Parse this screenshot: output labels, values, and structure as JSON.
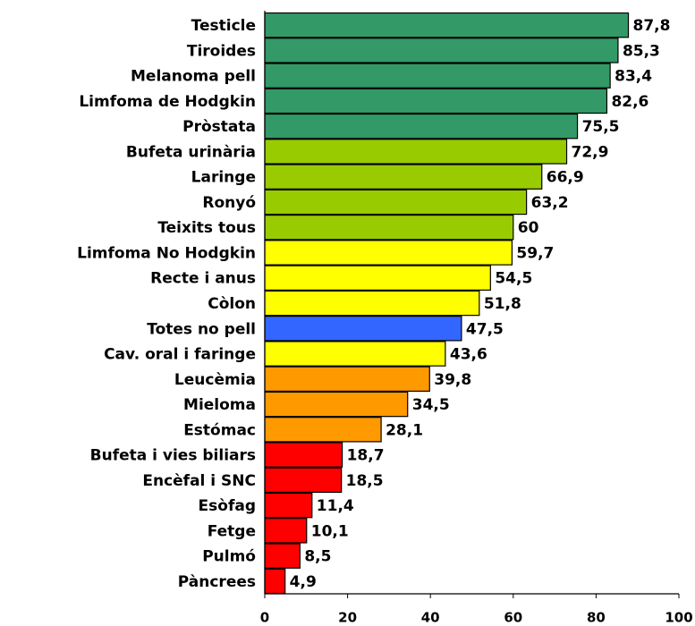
{
  "chart_data": {
    "type": "bar",
    "orientation": "horizontal",
    "categories": [
      "Testicle",
      "Tiroides",
      "Melanoma pell",
      "Limfoma de Hodgkin",
      "Pròstata",
      "Bufeta urinària",
      "Laringe",
      "Ronyó",
      "Teixits tous",
      "Limfoma No Hodgkin",
      "Recte i anus",
      "Còlon",
      "Totes no pell",
      "Cav. oral i faringe",
      "Leucèmia",
      "Mieloma",
      "Estómac",
      "Bufeta i vies biliars",
      "Encèfal i SNC",
      "Esòfag",
      "Fetge",
      "Pulmó",
      "Pàncrees"
    ],
    "values": [
      87.8,
      85.3,
      83.4,
      82.6,
      75.5,
      72.9,
      66.9,
      63.2,
      60,
      59.7,
      54.5,
      51.8,
      47.5,
      43.6,
      39.8,
      34.5,
      28.1,
      18.7,
      18.5,
      11.4,
      10.1,
      8.5,
      4.9
    ],
    "value_labels": [
      "87,8",
      "85,3",
      "83,4",
      "82,6",
      "75,5",
      "72,9",
      "66,9",
      "63,2",
      "60",
      "59,7",
      "54,5",
      "51,8",
      "47,5",
      "43,6",
      "39,8",
      "34,5",
      "28,1",
      "18,7",
      "18,5",
      "11,4",
      "10,1",
      "8,5",
      "4,9"
    ],
    "colors": [
      "#339966",
      "#339966",
      "#339966",
      "#339966",
      "#339966",
      "#99cc00",
      "#99cc00",
      "#99cc00",
      "#99cc00",
      "#ffff00",
      "#ffff00",
      "#ffff00",
      "#3366ff",
      "#ffff00",
      "#ff9900",
      "#ff9900",
      "#ff9900",
      "#ff0000",
      "#ff0000",
      "#ff0000",
      "#ff0000",
      "#ff0000",
      "#ff0000"
    ],
    "xlim": [
      0,
      100
    ],
    "xticks": [
      0,
      20,
      40,
      60,
      80,
      100
    ]
  }
}
